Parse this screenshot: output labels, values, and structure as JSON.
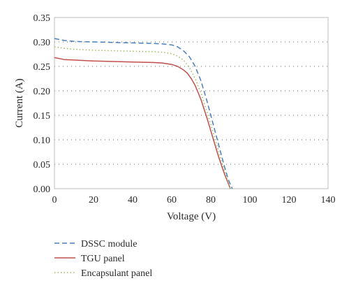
{
  "chart_data": {
    "type": "line",
    "title": "",
    "xlabel": "Voltage (V)",
    "ylabel": "Current (A)",
    "xlim": [
      0,
      140
    ],
    "ylim": [
      0,
      0.35
    ],
    "xticks": [
      0,
      20,
      40,
      60,
      80,
      100,
      120,
      140
    ],
    "yticks": [
      0.0,
      0.05,
      0.1,
      0.15,
      0.2,
      0.25,
      0.3,
      0.35
    ],
    "xtick_labels": [
      "0",
      "20",
      "40",
      "60",
      "80",
      "100",
      "120",
      "140"
    ],
    "ytick_labels": [
      "0.00",
      "0.05",
      "0.10",
      "0.15",
      "0.20",
      "0.25",
      "0.30",
      "0.35"
    ],
    "grid": "horizontal dotted",
    "legend_position": "below",
    "series": [
      {
        "name": "DSSC module",
        "color": "#4a7ebb",
        "style": "dashed",
        "x": [
          0,
          5,
          10,
          20,
          30,
          40,
          50,
          55,
          60,
          63,
          66,
          69,
          72,
          75,
          78,
          81,
          84,
          87,
          89,
          91
        ],
        "y": [
          0.307,
          0.303,
          0.301,
          0.3,
          0.299,
          0.298,
          0.297,
          0.296,
          0.294,
          0.29,
          0.282,
          0.27,
          0.25,
          0.22,
          0.18,
          0.135,
          0.09,
          0.045,
          0.018,
          0.0
        ]
      },
      {
        "name": "TGU panel",
        "color": "#c0504d",
        "style": "solid",
        "x": [
          0,
          5,
          10,
          20,
          30,
          40,
          50,
          55,
          60,
          63,
          66,
          68,
          70,
          72,
          75,
          78,
          81,
          84,
          87,
          90
        ],
        "y": [
          0.268,
          0.264,
          0.263,
          0.261,
          0.26,
          0.259,
          0.258,
          0.257,
          0.254,
          0.25,
          0.243,
          0.236,
          0.225,
          0.211,
          0.182,
          0.145,
          0.105,
          0.065,
          0.03,
          0.0
        ]
      },
      {
        "name": "Encapsulant panel",
        "color": "#9bbb59",
        "style": "dotted",
        "x": [
          0,
          5,
          10,
          20,
          30,
          40,
          50,
          55,
          60,
          63,
          66,
          69,
          72,
          75,
          78,
          81,
          84,
          87,
          90
        ],
        "y": [
          0.29,
          0.287,
          0.285,
          0.283,
          0.282,
          0.281,
          0.28,
          0.279,
          0.276,
          0.271,
          0.263,
          0.248,
          0.225,
          0.195,
          0.158,
          0.118,
          0.076,
          0.036,
          0.0
        ]
      }
    ]
  }
}
